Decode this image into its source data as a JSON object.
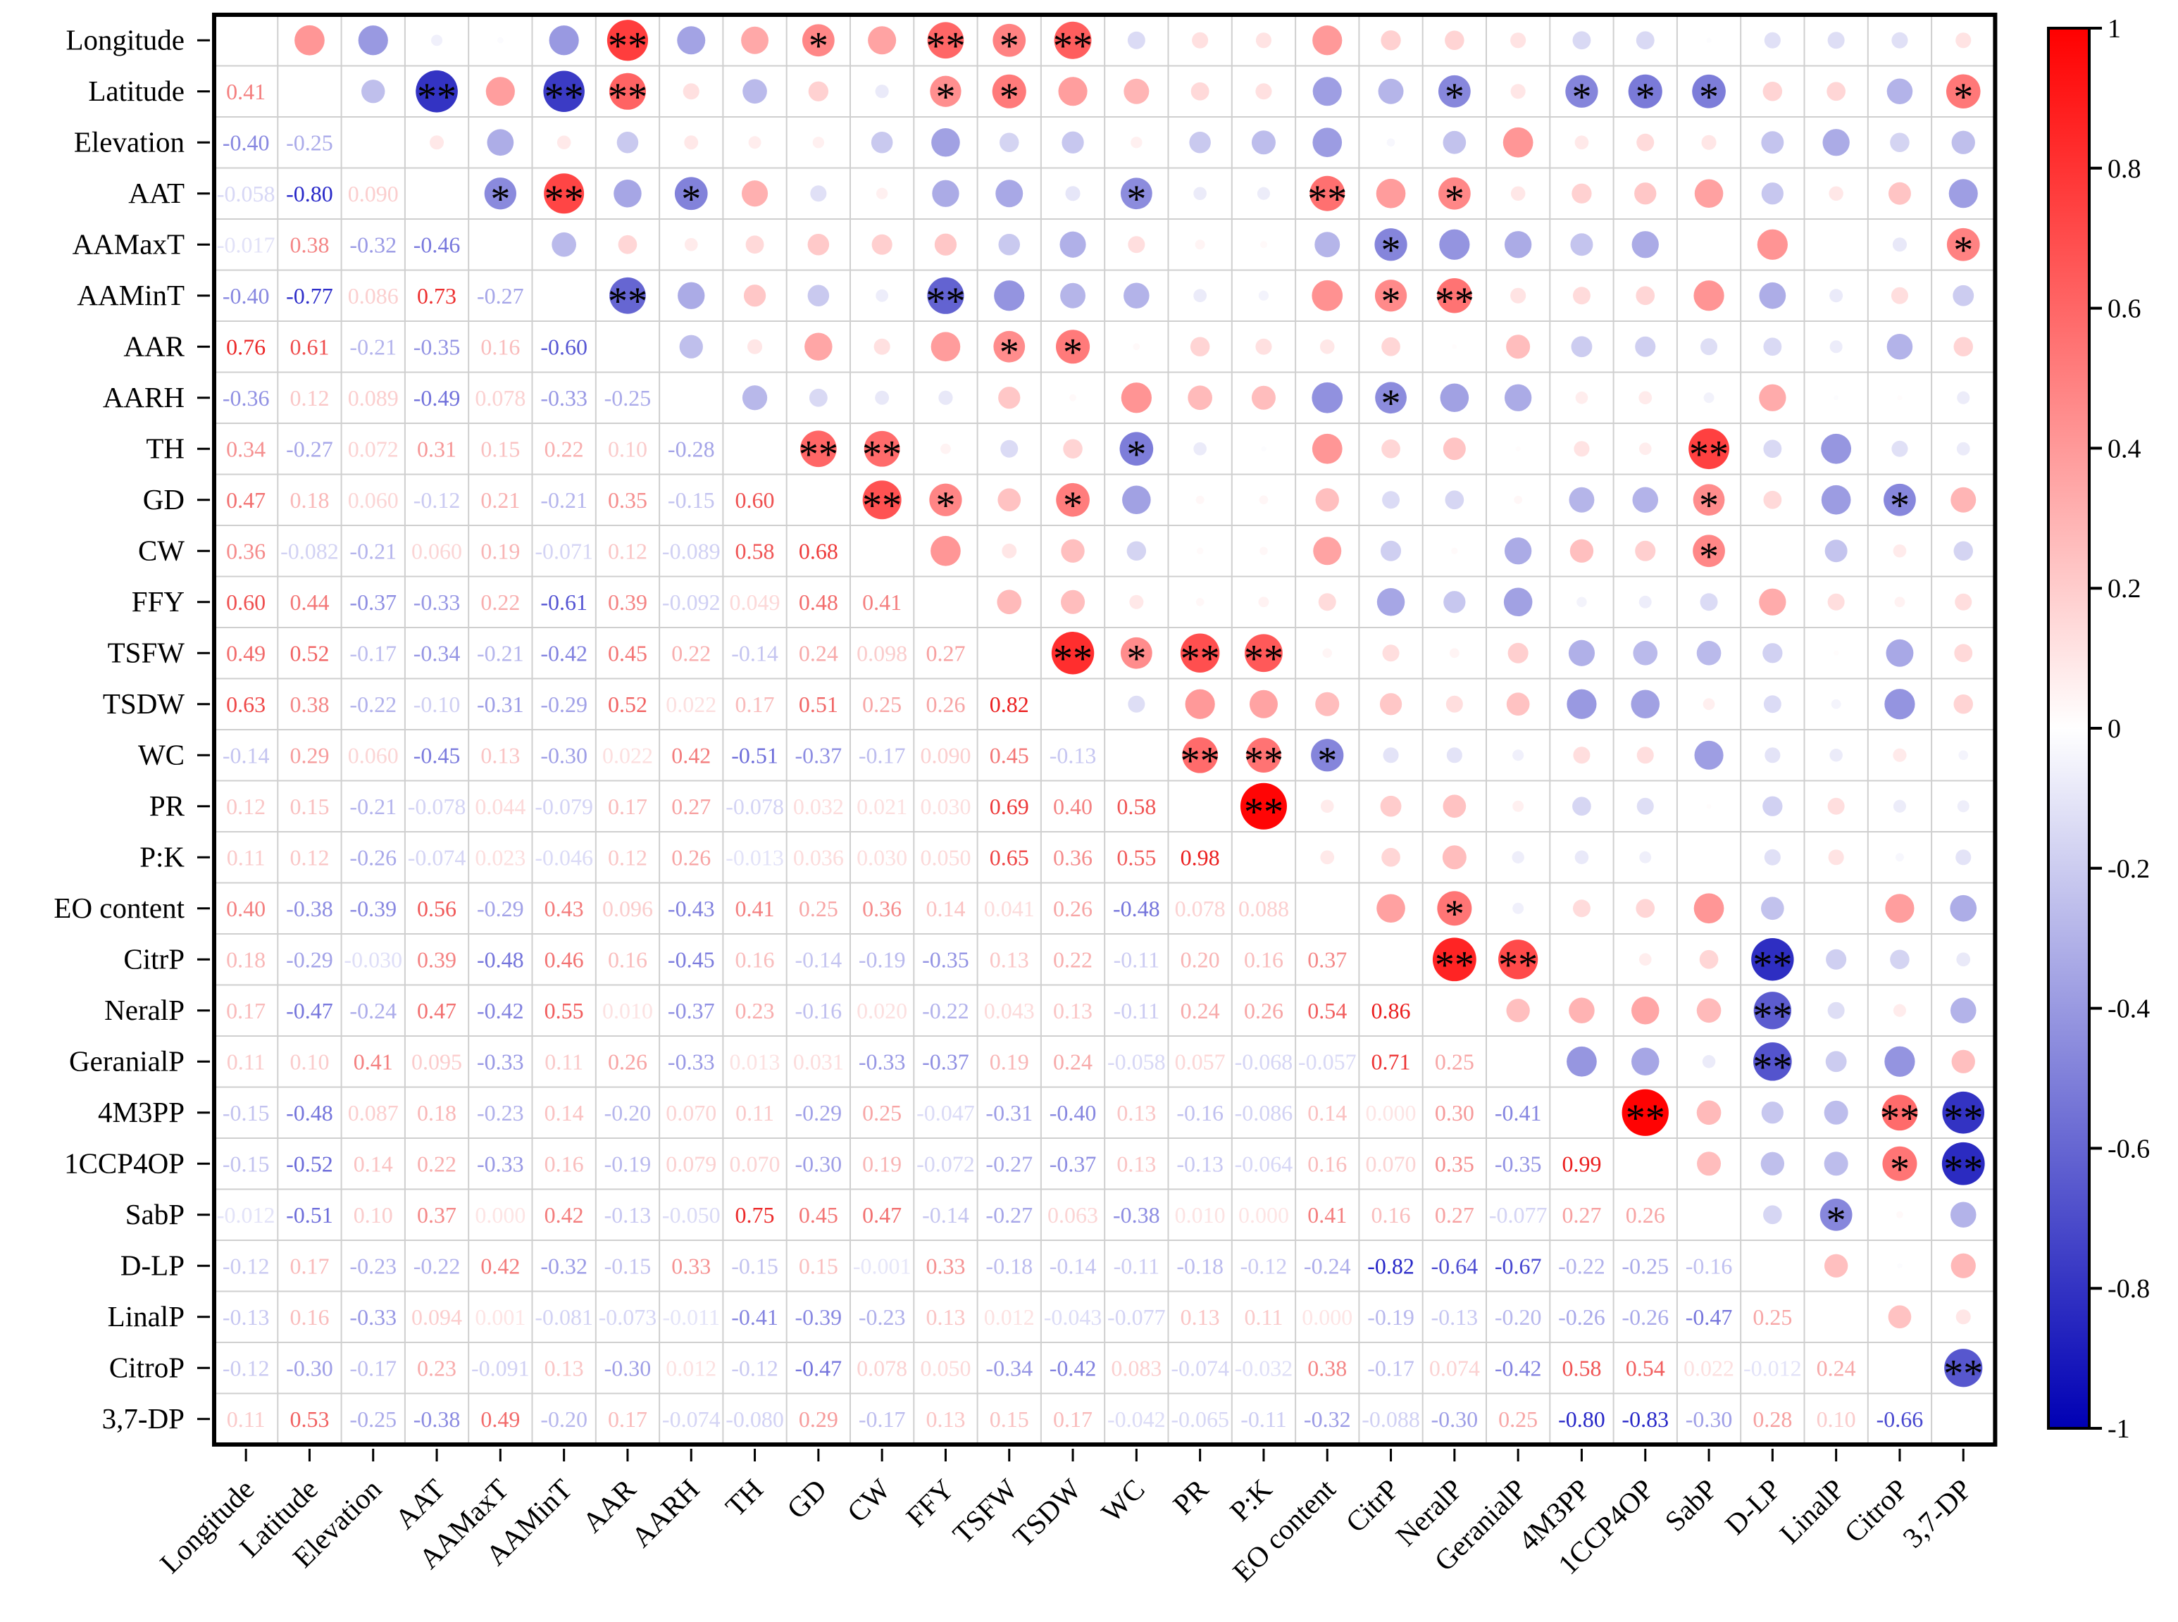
{
  "chart_data": {
    "type": "heatmap",
    "title": "",
    "variables": [
      "Longitude",
      "Latitude",
      "Elevation",
      "AAT",
      "AAMaxT",
      "AAMinT",
      "AAR",
      "AARH",
      "TH",
      "GD",
      "CW",
      "FFY",
      "TSFW",
      "TSDW",
      "WC",
      "PR",
      "P:K",
      "EO content",
      "CitrP",
      "NeralP",
      "GeranialP",
      "4M3PP",
      "1CCP4OP",
      "SabP",
      "D-LP",
      "LinalP",
      "CitroP",
      "3,7-DP"
    ],
    "lower_triangle_note": "Lower triangle shows correlation coefficients as numbers; upper triangle shows the same coefficients as circles sized and colored by value, with significance stars.",
    "lower_triangle_values": [
      [],
      [
        0.41
      ],
      [
        -0.4,
        -0.25
      ],
      [
        -0.058,
        -0.8,
        0.09
      ],
      [
        -0.017,
        0.38,
        -0.32,
        -0.46
      ],
      [
        -0.4,
        -0.77,
        0.086,
        0.73,
        -0.27
      ],
      [
        0.76,
        0.61,
        -0.21,
        -0.35,
        0.16,
        -0.6
      ],
      [
        -0.36,
        0.12,
        0.089,
        -0.49,
        0.078,
        -0.33,
        -0.25
      ],
      [
        0.34,
        -0.27,
        0.072,
        0.31,
        0.15,
        0.22,
        0.1,
        -0.28
      ],
      [
        0.47,
        0.18,
        0.06,
        -0.12,
        0.21,
        -0.21,
        0.35,
        -0.15,
        0.6
      ],
      [
        0.36,
        -0.082,
        -0.21,
        0.06,
        0.19,
        -0.071,
        0.12,
        -0.089,
        0.58,
        0.68
      ],
      [
        0.6,
        0.44,
        -0.37,
        -0.33,
        0.22,
        -0.61,
        0.39,
        -0.092,
        0.049,
        0.48,
        0.41
      ],
      [
        0.49,
        0.52,
        -0.17,
        -0.34,
        -0.21,
        -0.42,
        0.45,
        0.22,
        -0.14,
        0.24,
        0.098,
        0.27
      ],
      [
        0.63,
        0.38,
        -0.22,
        -0.1,
        -0.31,
        -0.29,
        0.52,
        0.022,
        0.17,
        0.51,
        0.25,
        0.26,
        0.82
      ],
      [
        -0.14,
        0.29,
        0.06,
        -0.45,
        0.13,
        -0.3,
        0.022,
        0.42,
        -0.51,
        -0.37,
        -0.17,
        0.09,
        0.45,
        -0.13
      ],
      [
        0.12,
        0.15,
        -0.21,
        -0.078,
        0.044,
        -0.079,
        0.17,
        0.27,
        -0.078,
        0.032,
        0.021,
        0.03,
        0.69,
        0.4,
        0.58
      ],
      [
        0.11,
        0.12,
        -0.26,
        -0.074,
        0.023,
        -0.046,
        0.12,
        0.26,
        -0.013,
        0.036,
        0.03,
        0.05,
        0.65,
        0.36,
        0.55,
        0.98
      ],
      [
        0.4,
        -0.38,
        -0.39,
        0.56,
        -0.29,
        0.43,
        0.096,
        -0.43,
        0.41,
        0.25,
        0.36,
        0.14,
        0.041,
        0.26,
        -0.48,
        0.078,
        0.088
      ],
      [
        0.18,
        -0.29,
        -0.03,
        0.39,
        -0.48,
        0.46,
        0.16,
        -0.45,
        0.16,
        -0.14,
        -0.19,
        -0.35,
        0.13,
        0.22,
        -0.11,
        0.2,
        0.16,
        0.37
      ],
      [
        0.17,
        -0.47,
        -0.24,
        0.47,
        -0.42,
        0.55,
        0.01,
        -0.37,
        0.23,
        -0.16,
        0.02,
        -0.22,
        0.043,
        0.13,
        -0.11,
        0.24,
        0.26,
        0.54,
        0.86
      ],
      [
        0.11,
        0.1,
        0.41,
        0.095,
        -0.33,
        0.11,
        0.26,
        -0.33,
        0.013,
        0.031,
        -0.33,
        -0.37,
        0.19,
        0.24,
        -0.058,
        0.057,
        -0.068,
        -0.057,
        0.71,
        0.25
      ],
      [
        -0.15,
        -0.48,
        0.087,
        0.18,
        -0.23,
        0.14,
        -0.2,
        0.07,
        0.11,
        -0.29,
        0.25,
        -0.047,
        -0.31,
        -0.4,
        0.13,
        -0.16,
        -0.086,
        0.14,
        0.0,
        0.3,
        -0.41
      ],
      [
        -0.15,
        -0.52,
        0.14,
        0.22,
        -0.33,
        0.16,
        -0.19,
        0.079,
        0.07,
        -0.3,
        0.19,
        -0.072,
        -0.27,
        -0.37,
        0.13,
        -0.13,
        -0.064,
        0.16,
        0.07,
        0.35,
        -0.35,
        0.99
      ],
      [
        -0.012,
        -0.51,
        0.1,
        0.37,
        0.0,
        0.42,
        -0.13,
        -0.05,
        0.75,
        0.45,
        0.47,
        -0.14,
        -0.27,
        0.063,
        -0.38,
        0.01,
        0.0,
        0.41,
        0.16,
        0.27,
        -0.077,
        0.27,
        0.26
      ],
      [
        -0.12,
        0.17,
        -0.23,
        -0.22,
        0.42,
        -0.32,
        -0.15,
        0.33,
        -0.15,
        0.15,
        -0.001,
        0.33,
        -0.18,
        -0.14,
        -0.11,
        -0.18,
        -0.12,
        -0.24,
        -0.82,
        -0.64,
        -0.67,
        -0.22,
        -0.25,
        -0.16
      ],
      [
        -0.13,
        0.16,
        -0.33,
        0.094,
        0.001,
        -0.081,
        -0.073,
        -0.011,
        -0.41,
        -0.39,
        -0.23,
        0.13,
        0.012,
        -0.043,
        -0.077,
        0.13,
        0.11,
        0.0,
        -0.19,
        -0.13,
        -0.2,
        -0.26,
        -0.26,
        -0.47,
        0.25
      ],
      [
        -0.12,
        -0.3,
        -0.17,
        0.23,
        -0.091,
        0.13,
        -0.3,
        0.012,
        -0.12,
        -0.47,
        0.078,
        0.05,
        -0.34,
        -0.42,
        0.083,
        -0.074,
        -0.032,
        0.38,
        -0.17,
        0.074,
        -0.42,
        0.58,
        0.54,
        0.022,
        -0.012,
        0.24
      ],
      [
        0.11,
        0.53,
        -0.25,
        -0.38,
        0.49,
        -0.2,
        0.17,
        -0.074,
        -0.08,
        0.29,
        -0.17,
        0.13,
        0.15,
        0.17,
        -0.042,
        -0.065,
        -0.11,
        -0.32,
        -0.088,
        -0.3,
        0.25,
        -0.8,
        -0.83,
        -0.3,
        0.28,
        0.1,
        -0.66
      ]
    ],
    "significance": [
      {
        "row": 0,
        "col": 6,
        "mark": "**"
      },
      {
        "row": 0,
        "col": 9,
        "mark": "*"
      },
      {
        "row": 0,
        "col": 11,
        "mark": "**"
      },
      {
        "row": 0,
        "col": 12,
        "mark": "*"
      },
      {
        "row": 0,
        "col": 13,
        "mark": "**"
      },
      {
        "row": 1,
        "col": 3,
        "mark": "**"
      },
      {
        "row": 1,
        "col": 5,
        "mark": "**"
      },
      {
        "row": 1,
        "col": 6,
        "mark": "**"
      },
      {
        "row": 1,
        "col": 11,
        "mark": "*"
      },
      {
        "row": 1,
        "col": 12,
        "mark": "*"
      },
      {
        "row": 1,
        "col": 19,
        "mark": "*"
      },
      {
        "row": 1,
        "col": 21,
        "mark": "*"
      },
      {
        "row": 1,
        "col": 22,
        "mark": "*"
      },
      {
        "row": 1,
        "col": 23,
        "mark": "*"
      },
      {
        "row": 1,
        "col": 27,
        "mark": "*"
      },
      {
        "row": 3,
        "col": 4,
        "mark": "*"
      },
      {
        "row": 3,
        "col": 5,
        "mark": "**"
      },
      {
        "row": 3,
        "col": 7,
        "mark": "*"
      },
      {
        "row": 3,
        "col": 14,
        "mark": "*"
      },
      {
        "row": 3,
        "col": 17,
        "mark": "**"
      },
      {
        "row": 3,
        "col": 19,
        "mark": "*"
      },
      {
        "row": 4,
        "col": 18,
        "mark": "*"
      },
      {
        "row": 4,
        "col": 27,
        "mark": "*"
      },
      {
        "row": 5,
        "col": 6,
        "mark": "**"
      },
      {
        "row": 5,
        "col": 11,
        "mark": "**"
      },
      {
        "row": 5,
        "col": 18,
        "mark": "*"
      },
      {
        "row": 5,
        "col": 19,
        "mark": "**"
      },
      {
        "row": 6,
        "col": 12,
        "mark": "*"
      },
      {
        "row": 6,
        "col": 13,
        "mark": "*"
      },
      {
        "row": 7,
        "col": 18,
        "mark": "*"
      },
      {
        "row": 8,
        "col": 9,
        "mark": "**"
      },
      {
        "row": 8,
        "col": 10,
        "mark": "**"
      },
      {
        "row": 8,
        "col": 14,
        "mark": "*"
      },
      {
        "row": 8,
        "col": 23,
        "mark": "**"
      },
      {
        "row": 9,
        "col": 10,
        "mark": "**"
      },
      {
        "row": 9,
        "col": 11,
        "mark": "*"
      },
      {
        "row": 9,
        "col": 13,
        "mark": "*"
      },
      {
        "row": 9,
        "col": 23,
        "mark": "*"
      },
      {
        "row": 9,
        "col": 26,
        "mark": "*"
      },
      {
        "row": 10,
        "col": 23,
        "mark": "*"
      },
      {
        "row": 12,
        "col": 13,
        "mark": "**"
      },
      {
        "row": 12,
        "col": 14,
        "mark": "*"
      },
      {
        "row": 12,
        "col": 15,
        "mark": "**"
      },
      {
        "row": 12,
        "col": 16,
        "mark": "**"
      },
      {
        "row": 14,
        "col": 15,
        "mark": "**"
      },
      {
        "row": 14,
        "col": 16,
        "mark": "**"
      },
      {
        "row": 14,
        "col": 17,
        "mark": "*"
      },
      {
        "row": 15,
        "col": 16,
        "mark": "**"
      },
      {
        "row": 17,
        "col": 19,
        "mark": "*"
      },
      {
        "row": 18,
        "col": 19,
        "mark": "**"
      },
      {
        "row": 18,
        "col": 20,
        "mark": "**"
      },
      {
        "row": 18,
        "col": 24,
        "mark": "**"
      },
      {
        "row": 19,
        "col": 24,
        "mark": "**"
      },
      {
        "row": 20,
        "col": 24,
        "mark": "**"
      },
      {
        "row": 21,
        "col": 22,
        "mark": "**"
      },
      {
        "row": 21,
        "col": 26,
        "mark": "**"
      },
      {
        "row": 21,
        "col": 27,
        "mark": "**"
      },
      {
        "row": 22,
        "col": 26,
        "mark": "*"
      },
      {
        "row": 22,
        "col": 27,
        "mark": "**"
      },
      {
        "row": 23,
        "col": 25,
        "mark": "*"
      },
      {
        "row": 26,
        "col": 27,
        "mark": "**"
      }
    ],
    "colorbar": {
      "range": [
        -1,
        1
      ],
      "ticks": [
        1,
        0.8,
        0.6,
        0.4,
        0.2,
        0,
        -0.2,
        -0.4,
        -0.6,
        -0.8,
        -1
      ],
      "tick_labels": [
        "1",
        "0.8",
        "0.6",
        "0.4",
        "0.2",
        "0",
        "-0.2",
        "-0.4",
        "-0.6",
        "-0.8",
        "-1"
      ],
      "colors": {
        "negative": "#0000b4",
        "zero": "#ffffff",
        "positive": "#ff0000"
      }
    }
  }
}
